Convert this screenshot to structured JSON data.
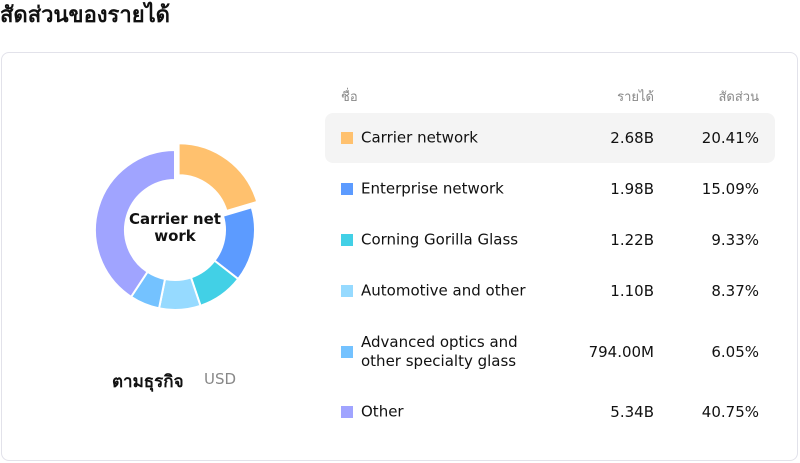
{
  "title": "สัดส่วนของรายได้",
  "chart": {
    "center_label": "Carrier net work",
    "center_line1": "Carrier net",
    "center_line2": "work",
    "segment_label": "ตามธุรกิจ",
    "currency": "USD"
  },
  "table": {
    "headers": {
      "name": "ชื่อ",
      "revenue": "รายได้",
      "share": "สัดส่วน"
    },
    "rows": [
      {
        "name": "Carrier network",
        "revenue": "2.68B",
        "share": "20.41%",
        "color": "#FFC16E",
        "highlighted": true
      },
      {
        "name": "Enterprise network",
        "revenue": "1.98B",
        "share": "15.09%",
        "color": "#5C9BFF"
      },
      {
        "name": "Corning Gorilla Glass",
        "revenue": "1.22B",
        "share": "9.33%",
        "color": "#42D0E6"
      },
      {
        "name": "Automotive and other",
        "revenue": "1.10B",
        "share": "8.37%",
        "color": "#96DAFF"
      },
      {
        "name": "Advanced optics and other specialty glass",
        "revenue": "794.00M",
        "share": "6.05%",
        "color": "#74C2FF"
      },
      {
        "name": "Other",
        "revenue": "5.34B",
        "share": "40.75%",
        "color": "#A0A4FF"
      }
    ]
  },
  "chart_data": {
    "type": "pie",
    "donut": true,
    "categories": [
      "Carrier network",
      "Enterprise network",
      "Corning Gorilla Glass",
      "Automotive and other",
      "Advanced optics and other specialty glass",
      "Other"
    ],
    "values": [
      20.41,
      15.09,
      9.33,
      8.37,
      6.05,
      40.75
    ],
    "highlighted": "Carrier network"
  }
}
